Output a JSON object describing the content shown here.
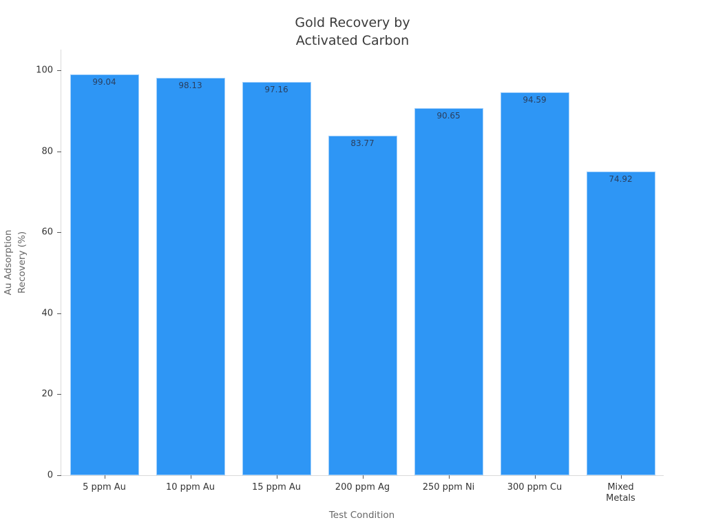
{
  "title": "Gold Recovery by\nActivated Carbon",
  "chart_data": {
    "type": "bar",
    "title": "Gold Recovery by\nActivated Carbon",
    "xlabel": "Test Condition",
    "ylabel": "Au Adsorption\nRecovery (%)",
    "categories": [
      "5 ppm Au",
      "10 ppm Au",
      "15 ppm Au",
      "200 ppm Ag",
      "250 ppm Ni",
      "300 ppm Cu",
      "Mixed\nMetals"
    ],
    "values": [
      99.04,
      98.13,
      97.16,
      83.77,
      90.65,
      94.59,
      74.92
    ],
    "value_labels": [
      "99.04",
      "98.13",
      "97.16",
      "83.77",
      "90.65",
      "94.59",
      "74.92"
    ],
    "yticks": [
      0,
      20,
      40,
      60,
      80,
      100
    ],
    "ylim": [
      0,
      105.1
    ],
    "grid": false,
    "legend": null,
    "value_label_position": "inside-top",
    "bar_color": "#2e96f5",
    "value_label_color": "#2a3f5f",
    "tick_label_color": "#333333",
    "axis_title_color": "#666666",
    "spine_color": "#d9d9d9"
  }
}
